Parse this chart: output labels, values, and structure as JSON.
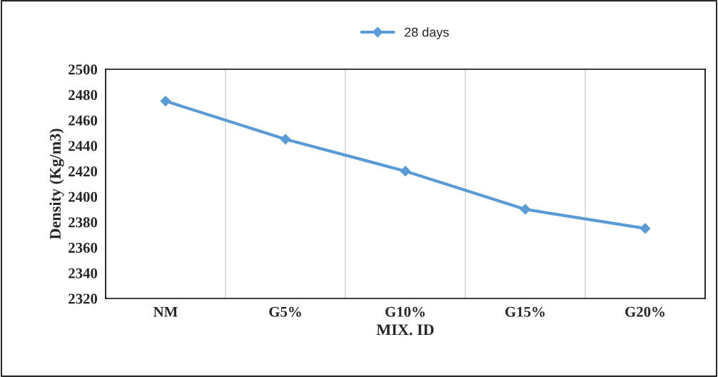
{
  "chart_data": {
    "type": "line",
    "xlabel": "MIX. ID",
    "ylabel": "Density (Kg/m3)",
    "categories": [
      "NM",
      "G5%",
      "G10%",
      "G15%",
      "G20%"
    ],
    "series": [
      {
        "name": "28 days",
        "color": "#5b9bd5",
        "values": [
          2475,
          2445,
          2420,
          2390,
          2375
        ]
      }
    ],
    "ylim": [
      2320,
      2500
    ],
    "yticks": [
      2320,
      2340,
      2360,
      2380,
      2400,
      2420,
      2440,
      2460,
      2480,
      2500
    ],
    "grid": "x",
    "legend": "top",
    "marker": "diamond",
    "line_style": "solid"
  }
}
